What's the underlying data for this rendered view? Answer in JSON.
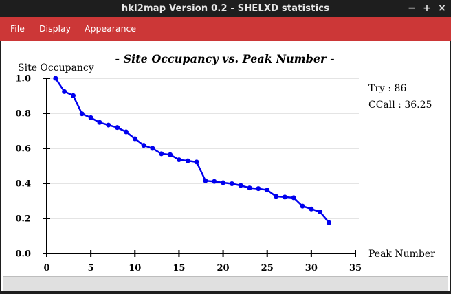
{
  "window": {
    "title": "hkl2map Version 0.2 - SHELXD statistics",
    "minimize_glyph": "−",
    "maximize_glyph": "+",
    "close_glyph": "×"
  },
  "menu": {
    "items": [
      "File",
      "Display",
      "Appearance"
    ]
  },
  "stats": {
    "try_label": "Try   : 86",
    "ccall_label": "CCall : 36.25"
  },
  "colors": {
    "menubar": "#cc3737",
    "series": "#0000ee",
    "grid": "#c8c8c8"
  },
  "chart_data": {
    "type": "line",
    "title": "- Site Occupancy vs. Peak Number -",
    "xlabel": "Peak Number",
    "ylabel": "Site Occupancy",
    "xlim": [
      0,
      35
    ],
    "ylim": [
      0.0,
      1.0
    ],
    "xticks": [
      0,
      5,
      10,
      15,
      20,
      25,
      30,
      35
    ],
    "yticks": [
      0.0,
      0.2,
      0.4,
      0.6,
      0.8,
      1.0
    ],
    "ytick_labels": [
      "0.0",
      "0.2",
      "0.4",
      "0.6",
      "0.8",
      "1.0"
    ],
    "grid": "horizontal",
    "series": [
      {
        "name": "Site Occupancy",
        "x": [
          1,
          2,
          3,
          4,
          5,
          6,
          7,
          8,
          9,
          10,
          11,
          12,
          13,
          14,
          15,
          16,
          17,
          18,
          19,
          20,
          21,
          22,
          23,
          24,
          25,
          26,
          27,
          28,
          29,
          30,
          31,
          32
        ],
        "values": [
          1.0,
          0.924,
          0.901,
          0.797,
          0.775,
          0.748,
          0.733,
          0.719,
          0.694,
          0.655,
          0.617,
          0.6,
          0.569,
          0.564,
          0.535,
          0.529,
          0.522,
          0.415,
          0.411,
          0.404,
          0.398,
          0.388,
          0.374,
          0.37,
          0.362,
          0.326,
          0.322,
          0.318,
          0.27,
          0.254,
          0.237,
          0.176
        ]
      }
    ]
  }
}
